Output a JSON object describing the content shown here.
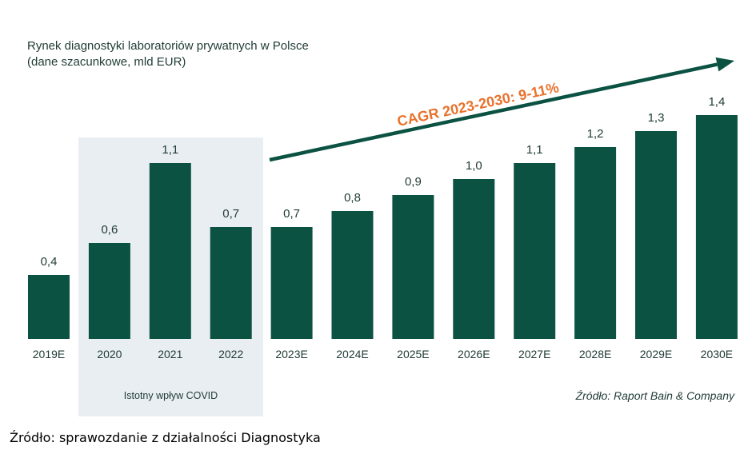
{
  "caption": "Źródło: sprawozdanie z działalności Diagnostyka",
  "chart_data": {
    "type": "bar",
    "title": "Rynek diagnostyki laboratoriów prywatnych w Polsce",
    "subtitle": "(dane szacunkowe, mld EUR)",
    "categories": [
      "2019E",
      "2020",
      "2021",
      "2022",
      "2023E",
      "2024E",
      "2025E",
      "2026E",
      "2027E",
      "2028E",
      "2029E",
      "2030E"
    ],
    "values": [
      0.4,
      0.6,
      1.1,
      0.7,
      0.7,
      0.8,
      0.9,
      1.0,
      1.1,
      1.2,
      1.3,
      1.4
    ],
    "value_labels": [
      "0,4",
      "0,6",
      "1,1",
      "0,7",
      "0,7",
      "0,8",
      "0,9",
      "1,0",
      "1,1",
      "1,2",
      "1,3",
      "1,4"
    ],
    "ylim": [
      0,
      1.4
    ],
    "grid": false,
    "annotations": {
      "covid_region": {
        "label": "Istotny wpływ COVID",
        "categories": [
          "2020",
          "2021",
          "2022"
        ]
      },
      "cagr_arrow": {
        "label": "CAGR 2023-2030: 9-11%",
        "from_category": "2023E",
        "to_category": "2030E"
      },
      "source": "Źródło: Raport Bain & Company"
    },
    "colors": {
      "bar": "#0b5243",
      "text": "#1f3a34",
      "covid_region": "#e9eef3",
      "cagr": "#e8722c",
      "arrow": "#0b5243"
    }
  }
}
